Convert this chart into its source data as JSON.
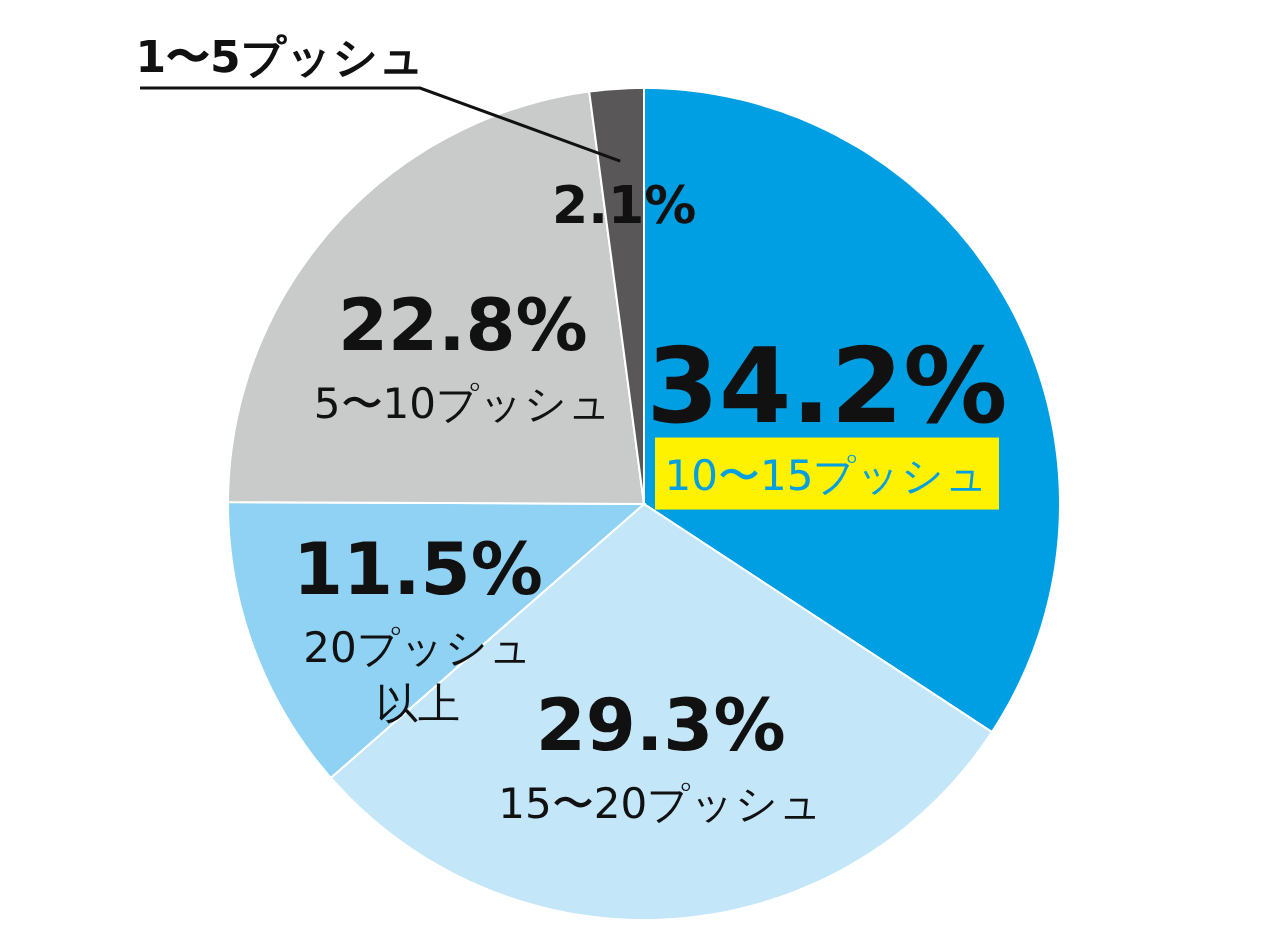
{
  "chart_data": {
    "type": "pie",
    "categories": [
      "10〜15プッシュ",
      "15〜20プッシュ",
      "20プッシュ以上",
      "5〜10プッシュ",
      "1〜5プッシュ"
    ],
    "values": [
      34.2,
      29.3,
      11.5,
      22.8,
      2.1
    ],
    "colors": [
      "#009fe3",
      "#c3e6f8",
      "#8fd2f3",
      "#c9caca",
      "#595757"
    ],
    "value_labels": [
      "34.2%",
      "29.3%",
      "11.5%",
      "22.8%",
      "2.1%"
    ]
  }
}
